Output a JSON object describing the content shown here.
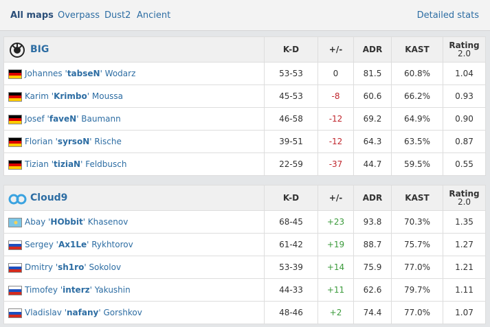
{
  "tabs": {
    "items": [
      "All maps",
      "Overpass",
      "Dust2",
      "Ancient"
    ],
    "active": 0,
    "link": "Detailed stats"
  },
  "teams": [
    {
      "name": "BIG",
      "logo": "big",
      "columns": [
        "K-D",
        "+/-",
        "ADR",
        "KAST"
      ],
      "rating": [
        "Rating",
        "2.0"
      ],
      "players": [
        {
          "flag": "de",
          "name": [
            "Johannes '",
            "tabseN",
            "' Wodarz"
          ],
          "kd": "53-53",
          "diff": "0",
          "adr": "81.5",
          "kast": "60.8%",
          "rating": "1.04"
        },
        {
          "flag": "de",
          "name": [
            "Karim '",
            "Krimbo",
            "' Moussa"
          ],
          "kd": "45-53",
          "diff": "-8",
          "adr": "60.6",
          "kast": "66.2%",
          "rating": "0.93"
        },
        {
          "flag": "de",
          "name": [
            "Josef '",
            "faveN",
            "' Baumann"
          ],
          "kd": "46-58",
          "diff": "-12",
          "adr": "69.2",
          "kast": "64.9%",
          "rating": "0.90"
        },
        {
          "flag": "de",
          "name": [
            "Florian '",
            "syrsoN",
            "' Rische"
          ],
          "kd": "39-51",
          "diff": "-12",
          "adr": "64.3",
          "kast": "63.5%",
          "rating": "0.87"
        },
        {
          "flag": "de",
          "name": [
            "Tizian '",
            "tiziaN",
            "' Feldbusch"
          ],
          "kd": "22-59",
          "diff": "-37",
          "adr": "44.7",
          "kast": "59.5%",
          "rating": "0.55"
        }
      ]
    },
    {
      "name": "Cloud9",
      "logo": "c9",
      "columns": [
        "K-D",
        "+/-",
        "ADR",
        "KAST"
      ],
      "rating": [
        "Rating",
        "2.0"
      ],
      "players": [
        {
          "flag": "kz",
          "name": [
            "Abay '",
            "HObbit",
            "' Khasenov"
          ],
          "kd": "68-45",
          "diff": "+23",
          "adr": "93.8",
          "kast": "70.3%",
          "rating": "1.35"
        },
        {
          "flag": "ru",
          "name": [
            "Sergey '",
            "Ax1Le",
            "' Rykhtorov"
          ],
          "kd": "61-42",
          "diff": "+19",
          "adr": "88.7",
          "kast": "75.7%",
          "rating": "1.27"
        },
        {
          "flag": "ru",
          "name": [
            "Dmitry '",
            "sh1ro",
            "' Sokolov"
          ],
          "kd": "53-39",
          "diff": "+14",
          "adr": "75.9",
          "kast": "77.0%",
          "rating": "1.21"
        },
        {
          "flag": "ru",
          "name": [
            "Timofey '",
            "interz",
            "' Yakushin"
          ],
          "kd": "44-33",
          "diff": "+11",
          "adr": "62.6",
          "kast": "79.7%",
          "rating": "1.11"
        },
        {
          "flag": "ru",
          "name": [
            "Vladislav '",
            "nafany",
            "' Gorshkov"
          ],
          "kd": "48-46",
          "diff": "+2",
          "adr": "74.4",
          "kast": "77.0%",
          "rating": "1.07"
        }
      ]
    }
  ]
}
